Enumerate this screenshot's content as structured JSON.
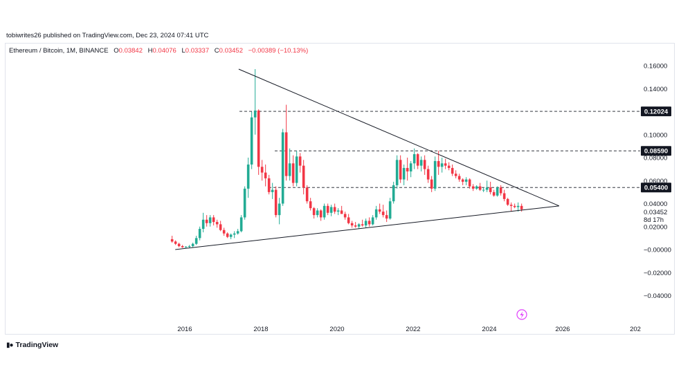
{
  "publisher_line": "tobiwrites26 published on TradingView.com, Dec 23, 2024 07:41 UTC",
  "legend": {
    "symbol": "Ethereum / Bitcoin, 1M, BINANCE",
    "open_label": "O",
    "open": "0.03842",
    "high_label": "H",
    "high": "0.04076",
    "low_label": "L",
    "low": "0.03337",
    "close_label": "C",
    "close": "0.03452",
    "change": "−0.00389 (−10.13%)"
  },
  "brand": {
    "logo_icon": "tradingview-logo-icon",
    "name": "TradingView"
  },
  "colors": {
    "up": "#22ab94",
    "down": "#f23645",
    "line": "#131722",
    "label_bg": "#131722"
  },
  "chart_data": {
    "type": "candlestick",
    "x_axis": {
      "ticks": [
        "2016",
        "2018",
        "2020",
        "2022",
        "2024",
        "2026",
        "202"
      ]
    },
    "y_axis": {
      "ticks": [
        "0.16000",
        "0.14000",
        "0.10000",
        "0.08000",
        "0.06000",
        "0.04000",
        "0.02000",
        "−0.00000",
        "−0.02000",
        "−0.04000"
      ],
      "range": [
        -0.045,
        0.165
      ]
    },
    "price_labels": [
      {
        "value": 0.12024,
        "text": "0.12024"
      },
      {
        "value": 0.0859,
        "text": "0.08590"
      },
      {
        "value": 0.054,
        "text": "0.05400"
      }
    ],
    "current_price": {
      "value": 0.03452,
      "text": "0.03452",
      "countdown": "8d 17h"
    },
    "trendlines": [
      {
        "name": "upper",
        "from": [
          "2017-06",
          0.157
        ],
        "to": [
          "2025-11",
          0.038
        ]
      },
      {
        "name": "lower",
        "from": [
          "2015-10",
          0.0
        ],
        "to": [
          "2025-11",
          0.038
        ]
      }
    ],
    "candles": [
      [
        0.009,
        0.012,
        0.006,
        0.007
      ],
      [
        0.007,
        0.008,
        0.004,
        0.005
      ],
      [
        0.005,
        0.006,
        0.002,
        0.003
      ],
      [
        0.003,
        0.004,
        0.0015,
        0.002
      ],
      [
        0.002,
        0.003,
        0.0015,
        0.0025
      ],
      [
        0.0025,
        0.004,
        0.0015,
        0.003
      ],
      [
        0.003,
        0.006,
        0.002,
        0.005
      ],
      [
        0.005,
        0.012,
        0.004,
        0.01
      ],
      [
        0.01,
        0.02,
        0.008,
        0.018
      ],
      [
        0.018,
        0.032,
        0.015,
        0.026
      ],
      [
        0.026,
        0.03,
        0.02,
        0.023
      ],
      [
        0.023,
        0.03,
        0.02,
        0.028
      ],
      [
        0.028,
        0.03,
        0.021,
        0.024
      ],
      [
        0.024,
        0.026,
        0.019,
        0.022
      ],
      [
        0.022,
        0.025,
        0.016,
        0.017
      ],
      [
        0.017,
        0.019,
        0.012,
        0.014
      ],
      [
        0.014,
        0.015,
        0.01,
        0.011
      ],
      [
        0.011,
        0.014,
        0.009,
        0.013
      ],
      [
        0.013,
        0.016,
        0.01,
        0.014
      ],
      [
        0.014,
        0.018,
        0.013,
        0.016
      ],
      [
        0.016,
        0.03,
        0.015,
        0.028
      ],
      [
        0.028,
        0.055,
        0.026,
        0.053
      ],
      [
        0.053,
        0.08,
        0.045,
        0.074
      ],
      [
        0.074,
        0.12,
        0.07,
        0.115
      ],
      [
        0.115,
        0.157,
        0.1,
        0.121
      ],
      [
        0.121,
        0.122,
        0.065,
        0.072
      ],
      [
        0.072,
        0.078,
        0.06,
        0.067
      ],
      [
        0.067,
        0.074,
        0.055,
        0.062
      ],
      [
        0.062,
        0.065,
        0.048,
        0.05
      ],
      [
        0.05,
        0.058,
        0.044,
        0.052
      ],
      [
        0.052,
        0.055,
        0.028,
        0.03
      ],
      [
        0.03,
        0.045,
        0.022,
        0.04
      ],
      [
        0.04,
        0.105,
        0.038,
        0.102
      ],
      [
        0.102,
        0.126,
        0.06,
        0.064
      ],
      [
        0.064,
        0.088,
        0.06,
        0.075
      ],
      [
        0.075,
        0.082,
        0.055,
        0.058
      ],
      [
        0.058,
        0.086,
        0.055,
        0.081
      ],
      [
        0.081,
        0.084,
        0.067,
        0.073
      ],
      [
        0.073,
        0.078,
        0.048,
        0.054
      ],
      [
        0.054,
        0.056,
        0.04,
        0.042
      ],
      [
        0.042,
        0.045,
        0.034,
        0.036
      ],
      [
        0.036,
        0.037,
        0.027,
        0.03
      ],
      [
        0.03,
        0.036,
        0.028,
        0.034
      ],
      [
        0.034,
        0.035,
        0.025,
        0.028
      ],
      [
        0.028,
        0.04,
        0.026,
        0.038
      ],
      [
        0.038,
        0.04,
        0.03,
        0.032
      ],
      [
        0.032,
        0.039,
        0.029,
        0.037
      ],
      [
        0.037,
        0.04,
        0.031,
        0.033
      ],
      [
        0.033,
        0.036,
        0.03,
        0.034
      ],
      [
        0.034,
        0.038,
        0.031,
        0.031
      ],
      [
        0.031,
        0.033,
        0.026,
        0.028
      ],
      [
        0.028,
        0.031,
        0.022,
        0.023
      ],
      [
        0.023,
        0.025,
        0.019,
        0.021
      ],
      [
        0.021,
        0.024,
        0.019,
        0.02
      ],
      [
        0.02,
        0.023,
        0.018,
        0.022
      ],
      [
        0.022,
        0.026,
        0.02,
        0.021
      ],
      [
        0.021,
        0.027,
        0.019,
        0.025
      ],
      [
        0.025,
        0.028,
        0.02,
        0.022
      ],
      [
        0.022,
        0.03,
        0.021,
        0.028
      ],
      [
        0.028,
        0.038,
        0.026,
        0.035
      ],
      [
        0.035,
        0.04,
        0.031,
        0.033
      ],
      [
        0.033,
        0.039,
        0.028,
        0.03
      ],
      [
        0.03,
        0.034,
        0.024,
        0.027
      ],
      [
        0.027,
        0.045,
        0.026,
        0.042
      ],
      [
        0.042,
        0.059,
        0.04,
        0.056
      ],
      [
        0.056,
        0.082,
        0.053,
        0.078
      ],
      [
        0.078,
        0.082,
        0.058,
        0.061
      ],
      [
        0.061,
        0.074,
        0.056,
        0.071
      ],
      [
        0.071,
        0.08,
        0.06,
        0.068
      ],
      [
        0.068,
        0.077,
        0.063,
        0.075
      ],
      [
        0.075,
        0.088,
        0.07,
        0.083
      ],
      [
        0.083,
        0.084,
        0.07,
        0.073
      ],
      [
        0.073,
        0.081,
        0.068,
        0.078
      ],
      [
        0.078,
        0.082,
        0.065,
        0.07
      ],
      [
        0.07,
        0.073,
        0.058,
        0.061
      ],
      [
        0.061,
        0.064,
        0.05,
        0.053
      ],
      [
        0.053,
        0.081,
        0.051,
        0.077
      ],
      [
        0.077,
        0.086,
        0.065,
        0.072
      ],
      [
        0.072,
        0.08,
        0.067,
        0.075
      ],
      [
        0.075,
        0.079,
        0.07,
        0.073
      ],
      [
        0.073,
        0.076,
        0.069,
        0.071
      ],
      [
        0.071,
        0.074,
        0.064,
        0.066
      ],
      [
        0.066,
        0.069,
        0.062,
        0.064
      ],
      [
        0.064,
        0.066,
        0.059,
        0.061
      ],
      [
        0.061,
        0.062,
        0.056,
        0.059
      ],
      [
        0.059,
        0.063,
        0.056,
        0.061
      ],
      [
        0.061,
        0.062,
        0.053,
        0.055
      ],
      [
        0.055,
        0.057,
        0.051,
        0.053
      ],
      [
        0.053,
        0.056,
        0.052,
        0.055
      ],
      [
        0.055,
        0.058,
        0.051,
        0.052
      ],
      [
        0.052,
        0.054,
        0.05,
        0.052
      ],
      [
        0.052,
        0.06,
        0.05,
        0.054
      ],
      [
        0.054,
        0.059,
        0.048,
        0.05
      ],
      [
        0.05,
        0.052,
        0.046,
        0.047
      ],
      [
        0.047,
        0.055,
        0.046,
        0.054
      ],
      [
        0.054,
        0.056,
        0.047,
        0.049
      ],
      [
        0.049,
        0.052,
        0.042,
        0.044
      ],
      [
        0.044,
        0.045,
        0.038,
        0.039
      ],
      [
        0.039,
        0.041,
        0.033,
        0.038
      ],
      [
        0.038,
        0.04,
        0.036,
        0.037
      ],
      [
        0.037,
        0.041,
        0.033,
        0.038
      ],
      [
        0.038,
        0.04,
        0.033,
        0.035
      ]
    ]
  }
}
